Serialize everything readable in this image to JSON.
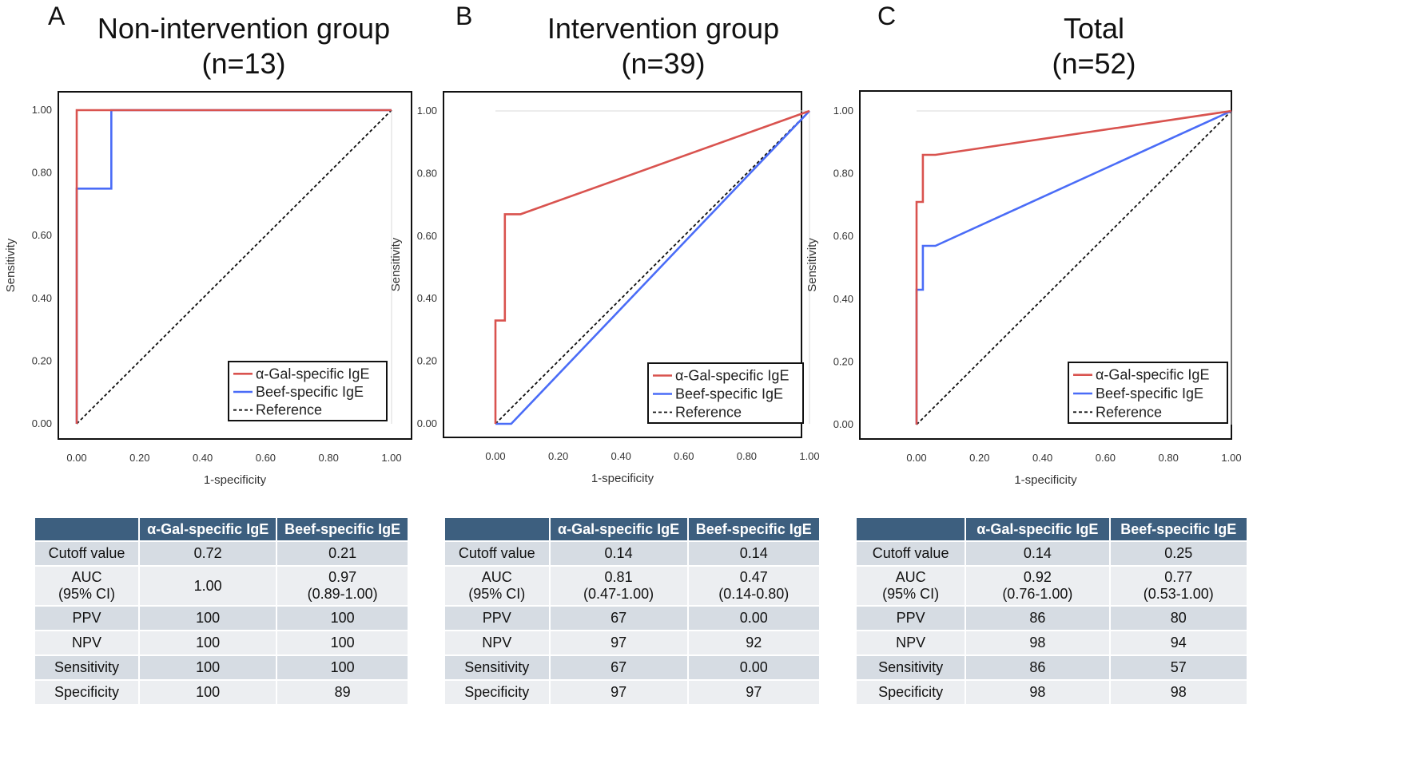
{
  "colors": {
    "alpha_gal": "#d9534f",
    "beef": "#4a6cf7",
    "reference": "#111111",
    "table_header": "#3d5f7f"
  },
  "chart_data": [
    {
      "panel": "A",
      "type": "line",
      "title": "Non-intervention group",
      "subtitle": "(n=13)",
      "xlabel": "1-specificity",
      "ylabel": "Sensitivity",
      "xlim": [
        0,
        1
      ],
      "ylim": [
        0,
        1
      ],
      "ticks": [
        "0.00",
        "0.20",
        "0.40",
        "0.60",
        "0.80",
        "1.00"
      ],
      "legend": [
        "α-Gal-specific IgE",
        "Beef-specific IgE",
        "Reference"
      ],
      "series": [
        {
          "name": "α-Gal-specific IgE",
          "color": "#d9534f",
          "x": [
            0,
            0,
            0,
            0.11,
            1
          ],
          "y": [
            0,
            0.75,
            1,
            1,
            1
          ]
        },
        {
          "name": "Beef-specific IgE",
          "color": "#4a6cf7",
          "x": [
            0,
            0,
            0.11,
            0.11,
            1
          ],
          "y": [
            0,
            0.75,
            0.75,
            1,
            1
          ]
        },
        {
          "name": "Reference",
          "color": "#111111",
          "dashed": true,
          "x": [
            0,
            1
          ],
          "y": [
            0,
            1
          ]
        }
      ]
    },
    {
      "panel": "B",
      "type": "line",
      "title": "Intervention group",
      "subtitle": "(n=39)",
      "xlabel": "1-specificity",
      "ylabel": "Sensitivity",
      "xlim": [
        0,
        1
      ],
      "ylim": [
        0,
        1
      ],
      "ticks": [
        "0.00",
        "0.20",
        "0.40",
        "0.60",
        "0.80",
        "1.00"
      ],
      "legend": [
        "α-Gal-specific IgE",
        "Beef-specific IgE",
        "Reference"
      ],
      "series": [
        {
          "name": "α-Gal-specific IgE",
          "color": "#d9534f",
          "x": [
            0,
            0,
            0.03,
            0.03,
            0.08,
            1
          ],
          "y": [
            0,
            0.33,
            0.33,
            0.67,
            0.67,
            1
          ]
        },
        {
          "name": "Beef-specific IgE",
          "color": "#4a6cf7",
          "x": [
            0,
            0.05,
            1
          ],
          "y": [
            0,
            0,
            1
          ]
        },
        {
          "name": "Reference",
          "color": "#111111",
          "dashed": true,
          "x": [
            0,
            1
          ],
          "y": [
            0,
            1
          ]
        }
      ]
    },
    {
      "panel": "C",
      "type": "line",
      "title": "Total",
      "subtitle": "(n=52)",
      "xlabel": "1-specificity",
      "ylabel": "Sensitivity",
      "xlim": [
        0,
        1
      ],
      "ylim": [
        0,
        1
      ],
      "ticks": [
        "0.00",
        "0.20",
        "0.40",
        "0.60",
        "0.80",
        "1.00"
      ],
      "legend": [
        "α-Gal-specific IgE",
        "Beef-specific IgE",
        "Reference"
      ],
      "series": [
        {
          "name": "α-Gal-specific IgE",
          "color": "#d9534f",
          "x": [
            0,
            0,
            0.02,
            0.02,
            0.06,
            1
          ],
          "y": [
            0,
            0.71,
            0.71,
            0.86,
            0.86,
            1
          ]
        },
        {
          "name": "Beef-specific IgE",
          "color": "#4a6cf7",
          "x": [
            0,
            0,
            0.02,
            0.02,
            0.06,
            1
          ],
          "y": [
            0,
            0.43,
            0.43,
            0.57,
            0.57,
            1
          ]
        },
        {
          "name": "Reference",
          "color": "#111111",
          "dashed": true,
          "x": [
            0,
            1
          ],
          "y": [
            0,
            1
          ]
        }
      ]
    }
  ],
  "tables": [
    {
      "headers": [
        "",
        "α-Gal-specific IgE",
        "Beef-specific IgE"
      ],
      "rows": [
        {
          "label": "Cutoff value",
          "a": "0.72",
          "b": "0.21"
        },
        {
          "label": "AUC",
          "label2": "(95% CI)",
          "a": "1.00",
          "a2": "",
          "b": "0.97",
          "b2": "(0.89-1.00)"
        },
        {
          "label": "PPV",
          "a": "100",
          "b": "100"
        },
        {
          "label": "NPV",
          "a": "100",
          "b": "100"
        },
        {
          "label": "Sensitivity",
          "a": "100",
          "b": "100"
        },
        {
          "label": "Specificity",
          "a": "100",
          "b": "89"
        }
      ]
    },
    {
      "headers": [
        "",
        "α-Gal-specific IgE",
        "Beef-specific IgE"
      ],
      "rows": [
        {
          "label": "Cutoff value",
          "a": "0.14",
          "b": "0.14"
        },
        {
          "label": "AUC",
          "label2": "(95% CI)",
          "a": "0.81",
          "a2": "(0.47-1.00)",
          "b": "0.47",
          "b2": "(0.14-0.80)"
        },
        {
          "label": "PPV",
          "a": "67",
          "b": "0.00"
        },
        {
          "label": "NPV",
          "a": "97",
          "b": "92"
        },
        {
          "label": "Sensitivity",
          "a": "67",
          "b": "0.00"
        },
        {
          "label": "Specificity",
          "a": "97",
          "b": "97"
        }
      ]
    },
    {
      "headers": [
        "",
        "α-Gal-specific IgE",
        "Beef-specific IgE"
      ],
      "rows": [
        {
          "label": "Cutoff value",
          "a": "0.14",
          "b": "0.25"
        },
        {
          "label": "AUC",
          "label2": "(95% CI)",
          "a": "0.92",
          "a2": "(0.76-1.00)",
          "b": "0.77",
          "b2": "(0.53-1.00)"
        },
        {
          "label": "PPV",
          "a": "86",
          "b": "80"
        },
        {
          "label": "NPV",
          "a": "98",
          "b": "94"
        },
        {
          "label": "Sensitivity",
          "a": "86",
          "b": "57"
        },
        {
          "label": "Specificity",
          "a": "98",
          "b": "98"
        }
      ]
    }
  ]
}
